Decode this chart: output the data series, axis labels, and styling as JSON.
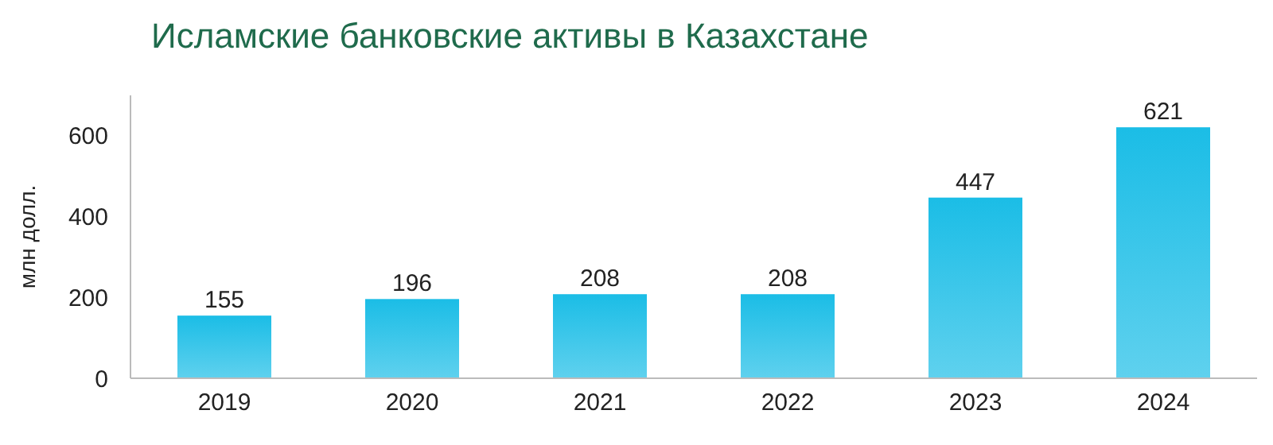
{
  "chart_data": {
    "type": "bar",
    "title": "Исламские банковские активы в Казахстане",
    "ylabel": "млн долл.",
    "categories": [
      "2019",
      "2020",
      "2021",
      "2022",
      "2023",
      "2024"
    ],
    "values": [
      155,
      196,
      208,
      208,
      447,
      621
    ],
    "color": "#1bbde6",
    "ylim": [
      0,
      700
    ],
    "yticks": [
      0,
      200,
      400,
      600
    ],
    "grid": false,
    "data_labels": true
  }
}
